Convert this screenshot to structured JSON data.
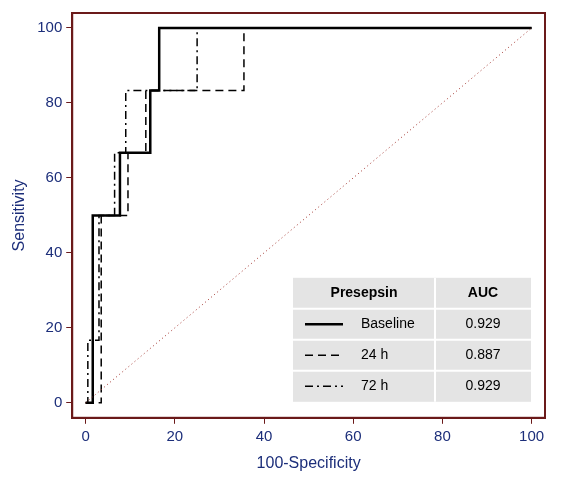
{
  "chart_data": {
    "type": "line",
    "x_label": "100-Specificity",
    "y_label": "Sensitivity",
    "xlim": [
      -3,
      103
    ],
    "ylim": [
      -4,
      104
    ],
    "xticks": [
      0,
      20,
      40,
      60,
      80,
      100
    ],
    "yticks": [
      0,
      20,
      40,
      60,
      80,
      100
    ],
    "grid": false,
    "legend": "lower right",
    "legend_header": [
      "Presepsin",
      "AUC"
    ],
    "series": [
      {
        "name": "Baseline",
        "color": "#000000",
        "line_style": "solid",
        "auc": 0.929,
        "x": [
          0,
          1.6,
          1.6,
          7.7,
          7.7,
          14.5,
          14.5,
          16.5,
          16.5,
          100
        ],
        "values": [
          0,
          0,
          50,
          50,
          66.7,
          66.7,
          83.3,
          83.3,
          100,
          100
        ]
      },
      {
        "name": "24 h",
        "color": "#000000",
        "line_style": "dashed",
        "auc": 0.887,
        "x": [
          0,
          3.5,
          3.5,
          9.5,
          9.5,
          13.5,
          13.5,
          35.5,
          35.5,
          100
        ],
        "values": [
          0,
          0,
          50,
          50,
          66.7,
          66.7,
          83.3,
          83.3,
          100,
          100
        ]
      },
      {
        "name": "72 h",
        "color": "#000000",
        "line_style": "dashdot",
        "auc": 0.929,
        "x": [
          0,
          0.5,
          0.5,
          3,
          3,
          6.5,
          6.5,
          9,
          9,
          25,
          25,
          100
        ],
        "values": [
          0,
          0,
          16.7,
          16.7,
          50,
          50,
          66.7,
          66.7,
          83.3,
          83.3,
          100,
          100
        ]
      }
    ],
    "reference_line": {
      "color": "#a0302a",
      "line_style": "dotted",
      "x": [
        0,
        100
      ],
      "values": [
        0,
        100
      ]
    }
  }
}
